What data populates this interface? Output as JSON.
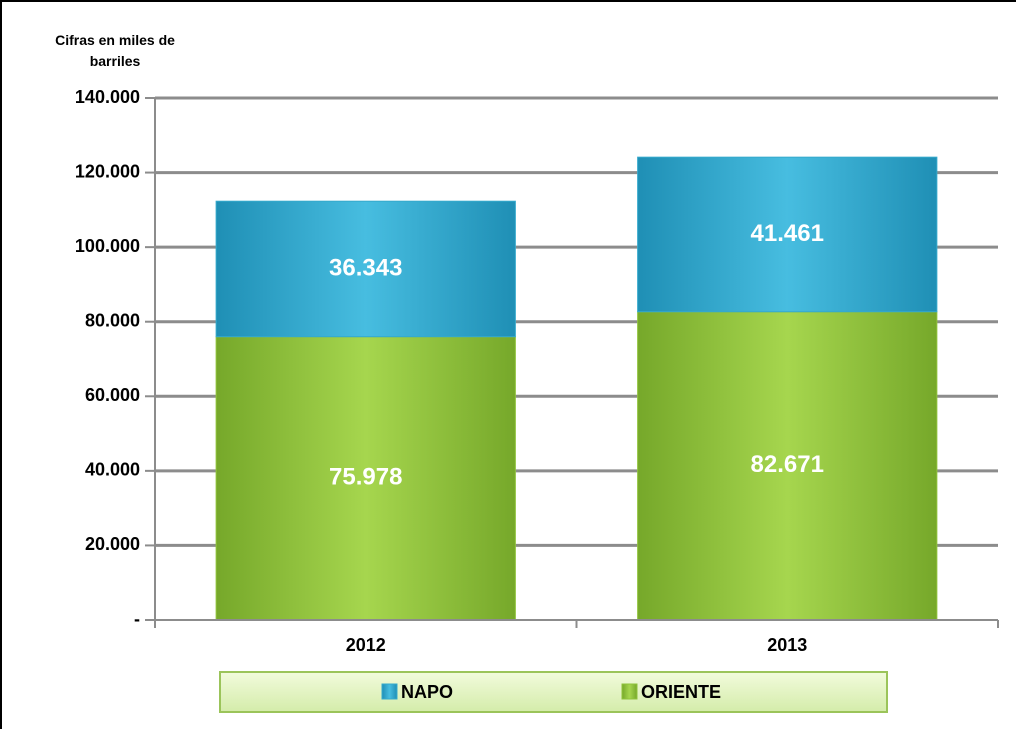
{
  "chart_data": {
    "type": "stacked_bar",
    "y_axis_label": "Cifras en miles de barriles",
    "categories": [
      "2012",
      "2013"
    ],
    "series": [
      {
        "name": "NAPO",
        "color": "#35a9cc",
        "values": [
          36343,
          41461
        ],
        "value_labels": [
          "36.343",
          "41.461"
        ]
      },
      {
        "name": "ORIENTE",
        "color": "#8fc33a",
        "values": [
          75978,
          82671
        ],
        "value_labels": [
          "75.978",
          "82.671"
        ]
      }
    ],
    "ylim": [
      0,
      140000
    ],
    "yticks": [
      {
        "value": 0,
        "label": "-"
      },
      {
        "value": 20000,
        "label": "20.000"
      },
      {
        "value": 40000,
        "label": "40.000"
      },
      {
        "value": 60000,
        "label": "60.000"
      },
      {
        "value": 80000,
        "label": "80.000"
      },
      {
        "value": 100000,
        "label": "100.000"
      },
      {
        "value": 120000,
        "label": "120.000"
      },
      {
        "value": 140000,
        "label": "140.000"
      }
    ],
    "grid": true,
    "legend": "bottom"
  }
}
